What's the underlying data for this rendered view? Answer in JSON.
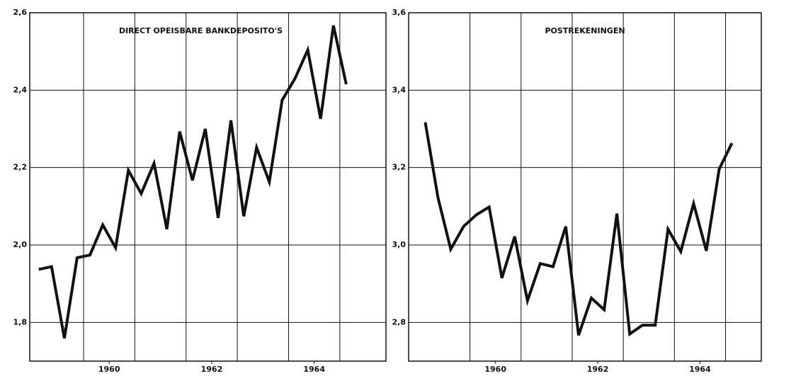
{
  "chart_data": [
    {
      "type": "line",
      "title": "DIRECT OPEISBARE BANKDEPOSITO'S",
      "x": [
        1958.625,
        1958.875,
        1959.125,
        1959.375,
        1959.625,
        1959.875,
        1960.125,
        1960.375,
        1960.625,
        1960.875,
        1961.125,
        1961.375,
        1961.625,
        1961.875,
        1962.125,
        1962.375,
        1962.625,
        1962.875,
        1963.125,
        1963.375,
        1963.625,
        1963.875,
        1964.125,
        1964.375,
        1964.625
      ],
      "series": [
        {
          "color": "#111111",
          "values": [
            1.937,
            1.944,
            1.759,
            1.967,
            1.974,
            2.052,
            1.993,
            2.193,
            2.133,
            2.211,
            2.041,
            2.293,
            2.167,
            2.3,
            2.07,
            2.322,
            2.074,
            2.252,
            2.163,
            2.374,
            2.43,
            2.504,
            2.326,
            2.567,
            2.415
          ]
        }
      ],
      "xlim": [
        1958.45,
        1965.4
      ],
      "xticks": [
        1960,
        1962,
        1964
      ],
      "xgrid": [
        1959.5,
        1960.5,
        1961.5,
        1962.5,
        1963.5,
        1964.5
      ],
      "ylim": [
        1.7,
        2.6
      ],
      "yticks": [
        {
          "value": 1.8,
          "label": "1,8"
        },
        {
          "value": 2.0,
          "label": "2,0"
        },
        {
          "value": 2.2,
          "label": "2,2"
        },
        {
          "value": 2.4,
          "label": "2,4"
        },
        {
          "value": 2.6,
          "label": "2,6"
        }
      ],
      "grid": true
    },
    {
      "type": "line",
      "title": "POSTREKENINGEN",
      "x": [
        1958.625,
        1958.875,
        1959.125,
        1959.375,
        1959.625,
        1959.875,
        1960.125,
        1960.375,
        1960.625,
        1960.875,
        1961.125,
        1961.375,
        1961.625,
        1961.875,
        1962.125,
        1962.375,
        1962.625,
        1962.875,
        1963.125,
        1963.375,
        1963.625,
        1963.875,
        1964.125,
        1964.375,
        1964.625
      ],
      "series": [
        {
          "color": "#111111",
          "values": [
            3.317,
            3.122,
            2.989,
            3.048,
            3.078,
            3.098,
            2.915,
            3.022,
            2.856,
            2.952,
            2.944,
            3.048,
            2.767,
            2.863,
            2.833,
            3.081,
            2.77,
            2.793,
            2.793,
            3.041,
            2.983,
            3.107,
            2.985,
            3.196,
            3.263
          ]
        }
      ],
      "xlim": [
        1958.3,
        1965.2
      ],
      "xticks": [
        1960,
        1962,
        1964
      ],
      "xgrid": [
        1959.5,
        1960.5,
        1961.5,
        1962.5,
        1963.5,
        1964.5
      ],
      "ylim": [
        2.7,
        3.6
      ],
      "yticks": [
        {
          "value": 2.8,
          "label": "2,8"
        },
        {
          "value": 3.0,
          "label": "3,0"
        },
        {
          "value": 3.2,
          "label": "3,2"
        },
        {
          "value": 3.4,
          "label": "3,4"
        },
        {
          "value": 3.6,
          "label": "3,6"
        }
      ],
      "grid": true
    }
  ]
}
